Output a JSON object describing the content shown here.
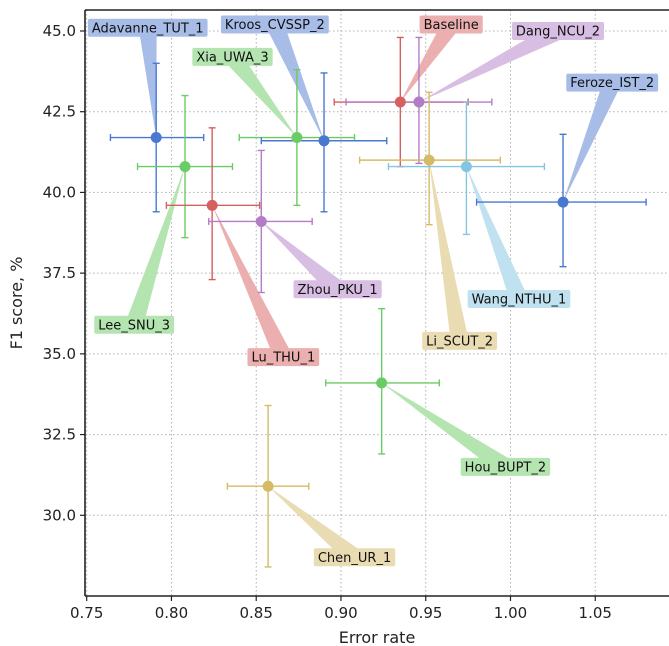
{
  "chart_data": {
    "type": "scatter",
    "xlabel": "Error rate",
    "ylabel": "F1 score, %",
    "xlim": [
      0.75,
      1.0
    ],
    "ylim": [
      27.5,
      45.5
    ],
    "xticks": [
      0.75,
      0.8,
      0.85,
      0.9,
      0.95,
      1.0,
      1.05
    ],
    "xtick_labels": [
      "0.75",
      "0.80",
      "0.85",
      "0.90",
      "0.95",
      "1.00",
      "1.05"
    ],
    "yticks": [
      30.0,
      32.5,
      35.0,
      37.5,
      40.0,
      42.5,
      45.0
    ],
    "ytick_labels": [
      "30.0",
      "32.5",
      "35.0",
      "37.5",
      "40.0",
      "42.5",
      "45.0"
    ],
    "grid": true,
    "series": [
      {
        "name": "Adavanne_TUT_1",
        "x": 0.791,
        "y": 41.7,
        "x_err": [
          0.764,
          0.819
        ],
        "y_err": [
          39.4,
          44.0
        ],
        "color": "#4878d0",
        "label_color": "#a7bde8",
        "label_pos": [
          0.786,
          45.1
        ]
      },
      {
        "name": "Xia_UWA_3",
        "x": 0.874,
        "y": 41.7,
        "x_err": [
          0.84,
          0.908
        ],
        "y_err": [
          39.6,
          43.8
        ],
        "color": "#6acc64",
        "label_color": "#b4e5b1",
        "label_pos": [
          0.836,
          44.2
        ]
      },
      {
        "name": "Kroos_CVSSP_2",
        "x": 0.89,
        "y": 41.6,
        "x_err": [
          0.853,
          0.927
        ],
        "y_err": [
          39.4,
          43.7
        ],
        "color": "#4878d0",
        "label_color": "#a7bde8",
        "label_pos": [
          0.861,
          45.2
        ]
      },
      {
        "name": "Baseline",
        "x": 0.935,
        "y": 42.8,
        "x_err": [
          0.896,
          0.975
        ],
        "y_err": [
          40.8,
          44.8
        ],
        "color": "#d65f5f",
        "label_color": "#ebafaf",
        "label_pos": [
          0.965,
          45.2
        ]
      },
      {
        "name": "Dang_NCU_2",
        "x": 0.946,
        "y": 42.8,
        "x_err": [
          0.903,
          0.989
        ],
        "y_err": [
          40.9,
          44.8
        ],
        "color": "#b47cc7",
        "label_color": "#d9bee3",
        "label_pos": [
          1.028,
          45.0
        ]
      },
      {
        "name": "Feroze_IST_2",
        "x": 1.031,
        "y": 39.7,
        "x_err": [
          0.98,
          1.08
        ],
        "y_err": [
          37.7,
          41.8
        ],
        "color": "#4878d0",
        "label_color": "#a7bde8",
        "label_pos": [
          1.06,
          43.4
        ]
      },
      {
        "name": "Lee_SNU_3",
        "x": 0.808,
        "y": 40.8,
        "x_err": [
          0.78,
          0.836
        ],
        "y_err": [
          38.6,
          43.0
        ],
        "color": "#6acc64",
        "label_color": "#b4e5b1",
        "label_pos": [
          0.778,
          35.9
        ]
      },
      {
        "name": "Lu_THU_1",
        "x": 0.824,
        "y": 39.6,
        "x_err": [
          0.797,
          0.852
        ],
        "y_err": [
          37.3,
          42.0
        ],
        "color": "#d65f5f",
        "label_color": "#ebafaf",
        "label_pos": [
          0.866,
          34.9
        ]
      },
      {
        "name": "Zhou_PKU_1",
        "x": 0.853,
        "y": 39.1,
        "x_err": [
          0.822,
          0.883
        ],
        "y_err": [
          36.9,
          41.3
        ],
        "color": "#b47cc7",
        "label_color": "#d9bee3",
        "label_pos": [
          0.898,
          37.0
        ]
      },
      {
        "name": "Li_SCUT_2",
        "x": 0.952,
        "y": 41.0,
        "x_err": [
          0.911,
          0.994
        ],
        "y_err": [
          39.0,
          43.1
        ],
        "color": "#d5bb67",
        "label_color": "#e9dcb2",
        "label_pos": [
          0.97,
          35.4
        ]
      },
      {
        "name": "Wang_NTHU_1",
        "x": 0.974,
        "y": 40.8,
        "x_err": [
          0.928,
          1.02
        ],
        "y_err": [
          38.7,
          42.8
        ],
        "color": "#82c6e2",
        "label_color": "#c0e2f0",
        "label_pos": [
          1.005,
          36.7
        ]
      },
      {
        "name": "Hou_BUPT_2",
        "x": 0.924,
        "y": 34.1,
        "x_err": [
          0.891,
          0.958
        ],
        "y_err": [
          31.9,
          36.4
        ],
        "color": "#6acc64",
        "label_color": "#b4e5b1",
        "label_pos": [
          0.997,
          31.5
        ]
      },
      {
        "name": "Chen_UR_1",
        "x": 0.857,
        "y": 30.9,
        "x_err": [
          0.833,
          0.881
        ],
        "y_err": [
          28.4,
          33.4
        ],
        "color": "#d5bb67",
        "label_color": "#e9dcb2",
        "label_pos": [
          0.908,
          28.7
        ]
      }
    ]
  }
}
